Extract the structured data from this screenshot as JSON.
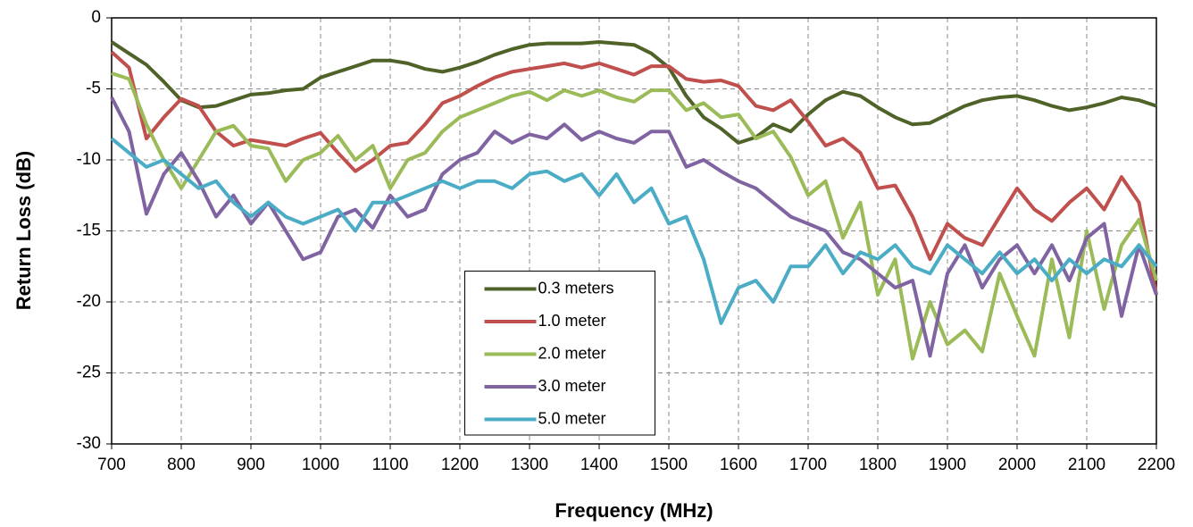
{
  "chart_data": {
    "type": "line",
    "xlabel": "Frequency (MHz)",
    "ylabel": "Return Loss (dB)",
    "xlim": [
      700,
      2200
    ],
    "ylim": [
      -30,
      0
    ],
    "xticks": [
      700,
      800,
      900,
      1000,
      1100,
      1200,
      1300,
      1400,
      1500,
      1600,
      1700,
      1800,
      1900,
      2000,
      2100,
      2200
    ],
    "yticks": [
      0,
      -5,
      -10,
      -15,
      -20,
      -25,
      -30
    ],
    "grid": true,
    "legend": "bottom-center",
    "x": [
      700,
      725,
      750,
      775,
      800,
      825,
      850,
      875,
      900,
      925,
      950,
      975,
      1000,
      1025,
      1050,
      1075,
      1100,
      1125,
      1150,
      1175,
      1200,
      1225,
      1250,
      1275,
      1300,
      1325,
      1350,
      1375,
      1400,
      1425,
      1450,
      1475,
      1500,
      1525,
      1550,
      1575,
      1600,
      1625,
      1650,
      1675,
      1700,
      1725,
      1750,
      1775,
      1800,
      1825,
      1850,
      1875,
      1900,
      1925,
      1950,
      1975,
      2000,
      2025,
      2050,
      2075,
      2100,
      2125,
      2150,
      2175,
      2200
    ],
    "series": [
      {
        "name": "0.3 meters",
        "color": "#4f6228",
        "values": [
          -1.7,
          -2.5,
          -3.3,
          -4.5,
          -5.8,
          -6.3,
          -6.2,
          -5.8,
          -5.4,
          -5.3,
          -5.1,
          -5.0,
          -4.2,
          -3.8,
          -3.4,
          -3.0,
          -3.0,
          -3.2,
          -3.6,
          -3.8,
          -3.5,
          -3.1,
          -2.6,
          -2.2,
          -1.9,
          -1.8,
          -1.8,
          -1.8,
          -1.7,
          -1.8,
          -1.9,
          -2.5,
          -3.5,
          -5.5,
          -7.0,
          -7.8,
          -8.8,
          -8.4,
          -7.5,
          -8.0,
          -6.8,
          -5.8,
          -5.2,
          -5.5,
          -6.3,
          -7.0,
          -7.5,
          -7.4,
          -6.8,
          -6.2,
          -5.8,
          -5.6,
          -5.5,
          -5.8,
          -6.2,
          -6.5,
          -6.3,
          -6.0,
          -5.6,
          -5.8,
          -6.2
        ]
      },
      {
        "name": "1.0 meter",
        "color": "#c0504d",
        "values": [
          -2.4,
          -3.5,
          -8.5,
          -7.0,
          -5.7,
          -6.2,
          -8.0,
          -9.0,
          -8.6,
          -8.8,
          -9.0,
          -8.5,
          -8.1,
          -9.5,
          -10.8,
          -10.0,
          -9.0,
          -8.8,
          -7.5,
          -6.0,
          -5.5,
          -4.8,
          -4.2,
          -3.8,
          -3.6,
          -3.4,
          -3.2,
          -3.5,
          -3.2,
          -3.6,
          -4.0,
          -3.4,
          -3.4,
          -4.3,
          -4.5,
          -4.4,
          -4.8,
          -6.2,
          -6.5,
          -5.8,
          -7.3,
          -9.0,
          -8.5,
          -9.5,
          -12.0,
          -11.8,
          -14.0,
          -17.0,
          -14.5,
          -15.5,
          -16.0,
          -14.0,
          -12.0,
          -13.5,
          -14.3,
          -13.0,
          -12.0,
          -13.5,
          -11.2,
          -13.0,
          -19.5
        ]
      },
      {
        "name": "2.0 meter",
        "color": "#9bbb59",
        "values": [
          -3.9,
          -4.3,
          -7.5,
          -10.0,
          -12.0,
          -10.0,
          -8.0,
          -7.6,
          -9.0,
          -9.2,
          -11.5,
          -10.0,
          -9.5,
          -8.3,
          -10.0,
          -9.0,
          -12.0,
          -10.0,
          -9.5,
          -8.0,
          -7.0,
          -6.5,
          -6.0,
          -5.5,
          -5.2,
          -5.8,
          -5.1,
          -5.5,
          -5.1,
          -5.6,
          -5.9,
          -5.1,
          -5.1,
          -6.5,
          -6.0,
          -7.0,
          -6.8,
          -8.5,
          -8.0,
          -9.8,
          -12.5,
          -11.5,
          -15.5,
          -13.0,
          -19.5,
          -17.0,
          -24.0,
          -20.0,
          -23.0,
          -22.0,
          -23.5,
          -18.0,
          -21.0,
          -23.8,
          -17.0,
          -22.5,
          -15.0,
          -20.5,
          -16.0,
          -14.2,
          -18.5
        ]
      },
      {
        "name": "3.0 meter",
        "color": "#8064a2",
        "values": [
          -5.6,
          -8.0,
          -13.8,
          -11.0,
          -9.5,
          -11.5,
          -14.0,
          -12.5,
          -14.5,
          -13.0,
          -15.0,
          -17.0,
          -16.5,
          -14.0,
          -13.5,
          -14.8,
          -12.5,
          -14.0,
          -13.5,
          -11.0,
          -10.0,
          -9.5,
          -8.0,
          -8.8,
          -8.2,
          -8.5,
          -7.5,
          -8.6,
          -8.0,
          -8.5,
          -8.8,
          -8.0,
          -8.0,
          -10.5,
          -10.0,
          -10.8,
          -11.5,
          -12.0,
          -13.0,
          -14.0,
          -14.5,
          -15.0,
          -16.5,
          -17.0,
          -18.0,
          -19.0,
          -18.5,
          -23.8,
          -18.0,
          -16.0,
          -19.0,
          -17.0,
          -16.0,
          -18.0,
          -16.0,
          -18.5,
          -15.5,
          -14.5,
          -21.0,
          -16.0,
          -19.5
        ]
      },
      {
        "name": "5.0 meter",
        "color": "#4bacc6",
        "values": [
          -8.5,
          -9.5,
          -10.5,
          -10.0,
          -11.0,
          -12.0,
          -11.5,
          -13.0,
          -14.0,
          -13.0,
          -14.0,
          -14.5,
          -14.0,
          -13.5,
          -15.0,
          -13.0,
          -13.0,
          -12.5,
          -12.0,
          -11.5,
          -12.0,
          -11.5,
          -11.5,
          -12.0,
          -11.0,
          -10.8,
          -11.5,
          -11.0,
          -12.5,
          -11.0,
          -13.0,
          -12.0,
          -14.5,
          -14.0,
          -17.0,
          -21.5,
          -19.0,
          -18.5,
          -20.0,
          -17.5,
          -17.5,
          -16.0,
          -18.0,
          -16.5,
          -17.0,
          -16.0,
          -17.5,
          -18.0,
          -16.0,
          -17.0,
          -18.0,
          -16.5,
          -18.0,
          -17.0,
          -18.5,
          -17.0,
          -18.0,
          -17.0,
          -17.5,
          -16.0,
          -17.5
        ]
      }
    ]
  }
}
